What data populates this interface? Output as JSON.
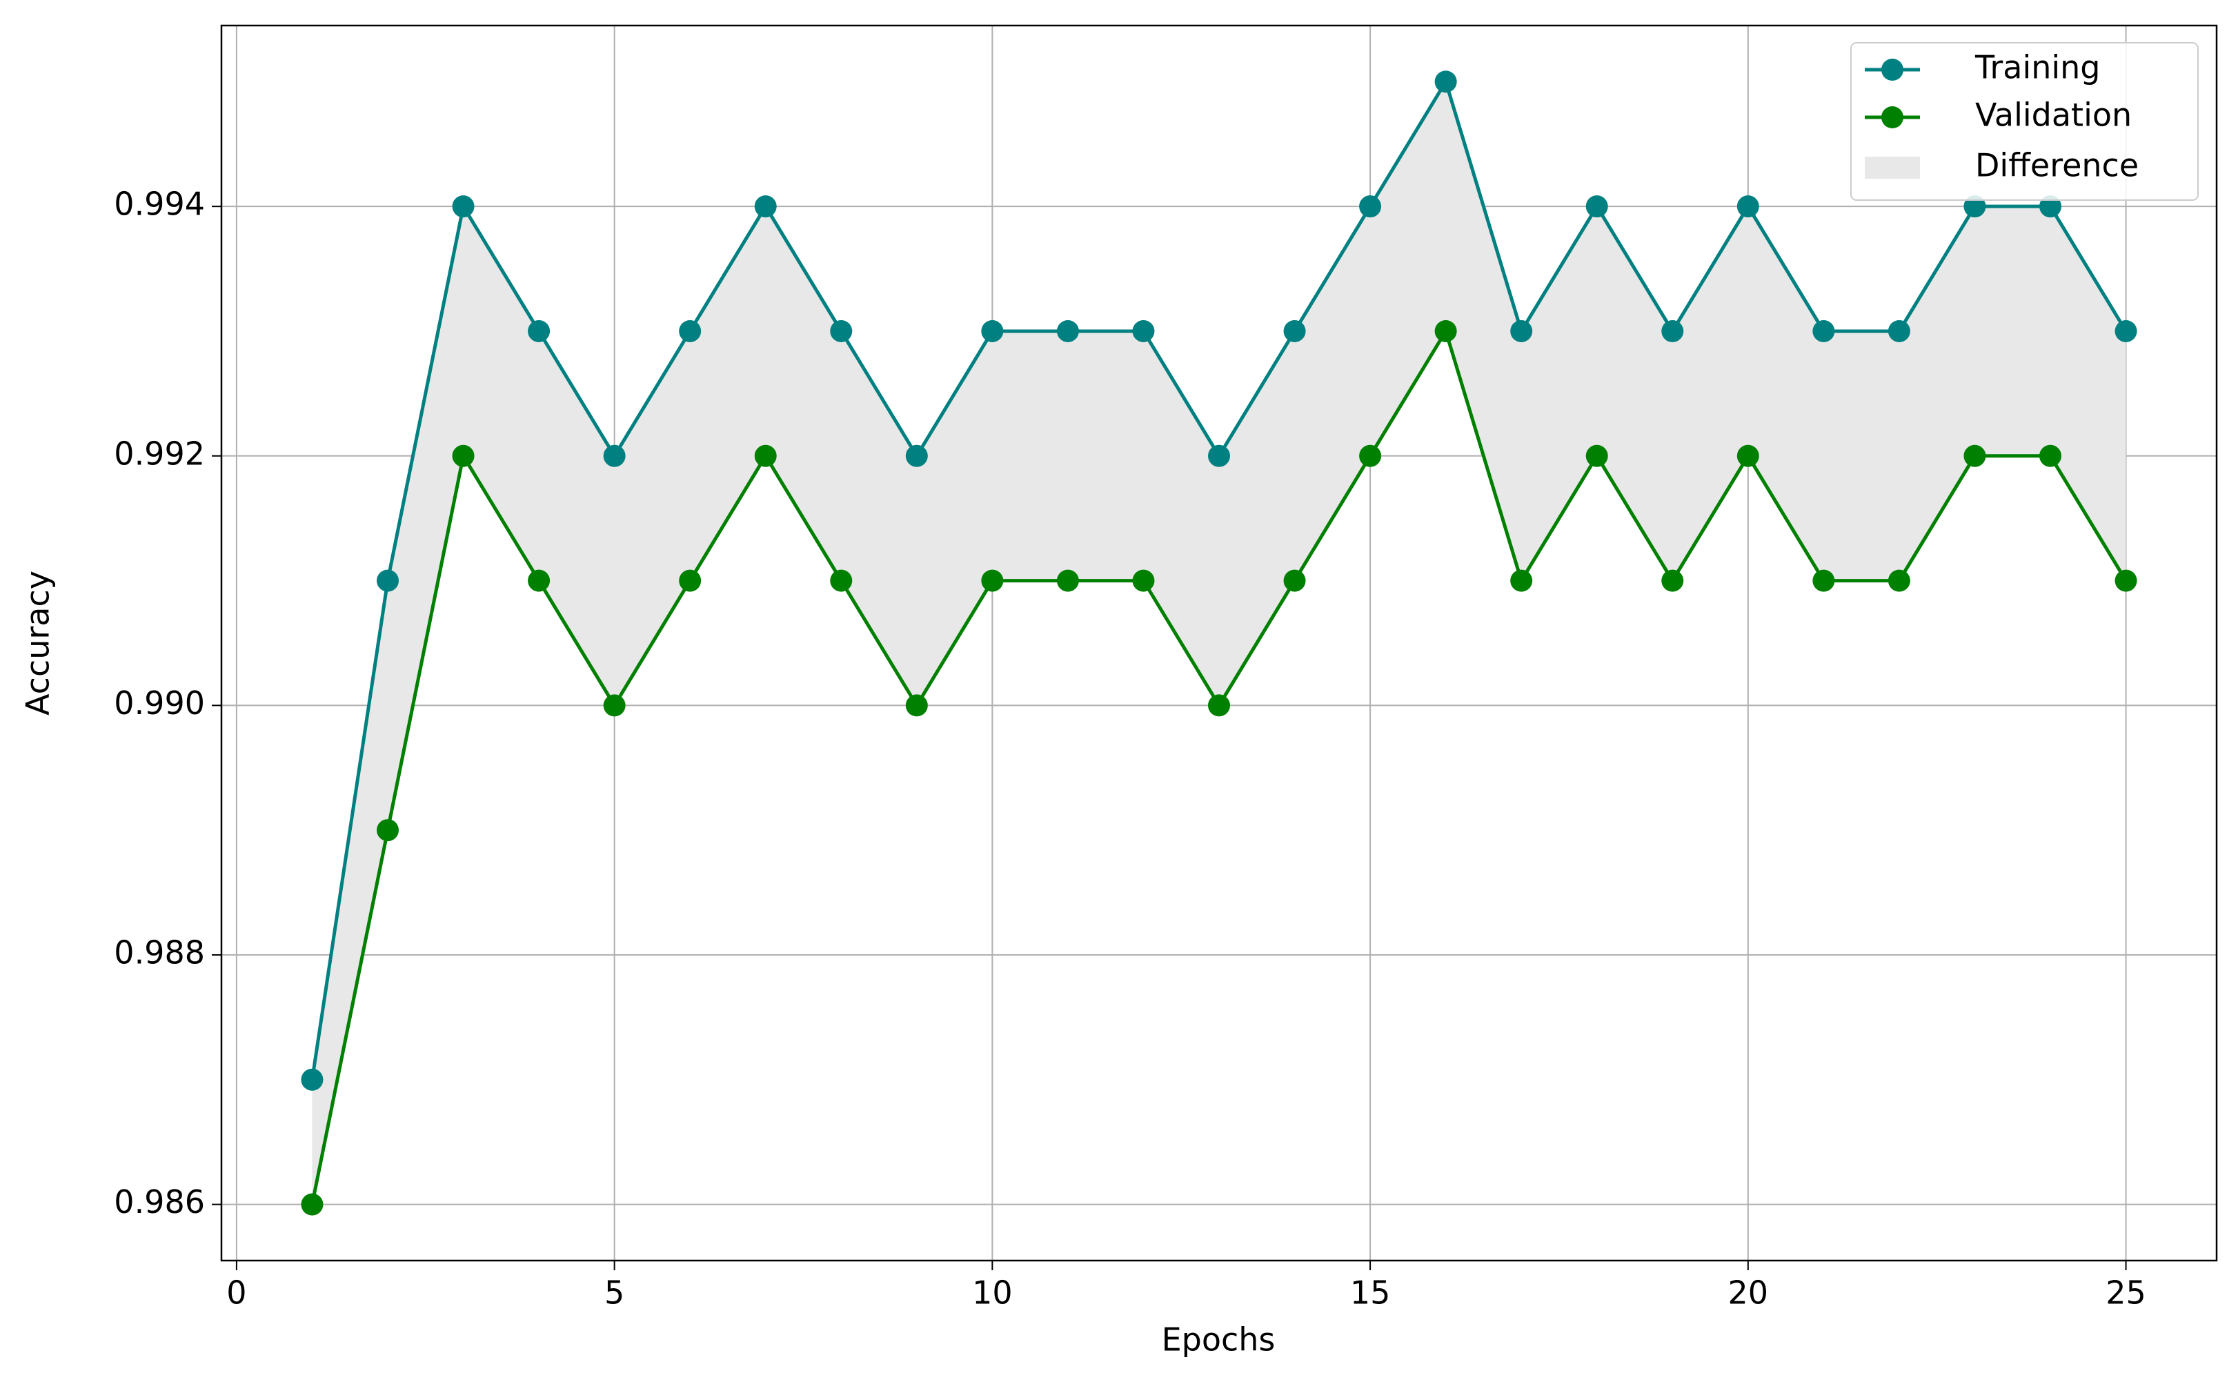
{
  "chart_data": {
    "type": "line",
    "x_label": "Epochs",
    "y_label": "Accuracy",
    "x": [
      1,
      2,
      3,
      4,
      5,
      6,
      7,
      8,
      9,
      10,
      11,
      12,
      13,
      14,
      15,
      16,
      17,
      18,
      19,
      20,
      21,
      22,
      23,
      24,
      25
    ],
    "series": [
      {
        "name": "Training",
        "color": "#008080",
        "values": [
          0.987,
          0.991,
          0.994,
          0.993,
          0.992,
          0.993,
          0.994,
          0.993,
          0.992,
          0.993,
          0.993,
          0.993,
          0.992,
          0.993,
          0.994,
          0.995,
          0.993,
          0.994,
          0.993,
          0.994,
          0.993,
          0.993,
          0.994,
          0.994,
          0.993
        ]
      },
      {
        "name": "Validation",
        "color": "#008000",
        "values": [
          0.986,
          0.989,
          0.992,
          0.991,
          0.99,
          0.991,
          0.992,
          0.991,
          0.99,
          0.991,
          0.991,
          0.991,
          0.99,
          0.991,
          0.992,
          0.993,
          0.991,
          0.992,
          0.991,
          0.992,
          0.991,
          0.991,
          0.992,
          0.992,
          0.991
        ]
      }
    ],
    "fill": {
      "name": "Difference",
      "color": "#e8e8e8"
    },
    "xlim": [
      -0.2,
      26.2
    ],
    "ylim": [
      0.98555,
      0.99545
    ],
    "xticks": [
      0,
      5,
      10,
      15,
      20,
      25
    ],
    "yticks": [
      0.986,
      0.988,
      {
        "value": 0.99,
        "label": "0.990"
      },
      0.992,
      0.994
    ],
    "grid": true,
    "legend": "upper right"
  }
}
